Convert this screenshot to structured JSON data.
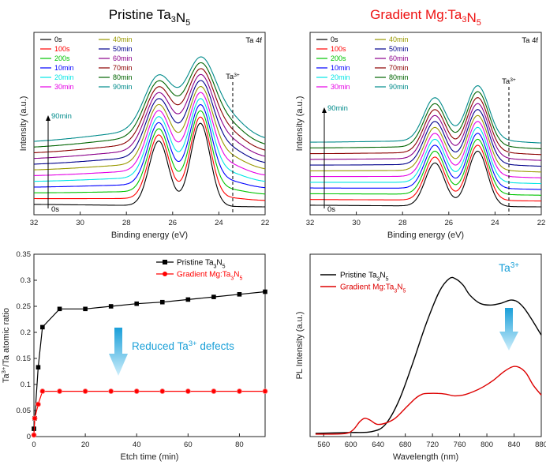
{
  "chart_data": [
    {
      "type": "line",
      "title": "Pristine Ta₃N₅",
      "title_color": "#000000",
      "xlabel": "Binding energy (eV)",
      "ylabel": "Intensity (a.u.)",
      "x_reversed": true,
      "xlim": [
        32,
        22
      ],
      "xticks": [
        "32",
        "30",
        "28",
        "26",
        "24",
        "22"
      ],
      "annotations": [
        "Ta 4f",
        "Ta³⁺",
        "90min",
        "0s"
      ],
      "peaks": {
        "ta4f_72": 24.8,
        "ta4f_52": 26.6,
        "ta3plus_line": 23.4
      },
      "series": [
        {
          "name": "0s",
          "color": "#000000"
        },
        {
          "name": "100s",
          "color": "#ff0000"
        },
        {
          "name": "200s",
          "color": "#00c400"
        },
        {
          "name": "10min",
          "color": "#0000ff"
        },
        {
          "name": "20min",
          "color": "#00e5e5"
        },
        {
          "name": "30min",
          "color": "#e500e5"
        },
        {
          "name": "40min",
          "color": "#999900"
        },
        {
          "name": "50min",
          "color": "#00008b"
        },
        {
          "name": "60min",
          "color": "#8b008b"
        },
        {
          "name": "70min",
          "color": "#8b0000"
        },
        {
          "name": "80min",
          "color": "#006400"
        },
        {
          "name": "90min",
          "color": "#008b8b"
        }
      ]
    },
    {
      "type": "line",
      "title": "Gradient Mg:Ta₃N₅",
      "title_color": "#ee1111",
      "xlabel": "Binding energy (eV)",
      "ylabel": "Intensity (a.u.)",
      "x_reversed": true,
      "xlim": [
        32,
        22
      ],
      "xticks": [
        "32",
        "30",
        "28",
        "26",
        "24",
        "22"
      ],
      "annotations": [
        "Ta 4f",
        "Ta³⁺",
        "90min",
        "0s"
      ],
      "peaks": {
        "ta4f_72": 24.75,
        "ta4f_52": 26.6,
        "ta3plus_line": 23.4
      },
      "series": [
        {
          "name": "0s",
          "color": "#000000"
        },
        {
          "name": "100s",
          "color": "#ff0000"
        },
        {
          "name": "200s",
          "color": "#00c400"
        },
        {
          "name": "10min",
          "color": "#0000ff"
        },
        {
          "name": "20min",
          "color": "#00e5e5"
        },
        {
          "name": "30min",
          "color": "#e500e5"
        },
        {
          "name": "40min",
          "color": "#999900"
        },
        {
          "name": "50min",
          "color": "#00008b"
        },
        {
          "name": "60min",
          "color": "#8b008b"
        },
        {
          "name": "70min",
          "color": "#8b0000"
        },
        {
          "name": "80min",
          "color": "#006400"
        },
        {
          "name": "90min",
          "color": "#008b8b"
        }
      ]
    },
    {
      "type": "line",
      "xlabel": "Etch time (min)",
      "ylabel": "Ta³⁺/Ta atomic ratio",
      "xlim": [
        0,
        90
      ],
      "ylim": [
        0,
        0.35
      ],
      "xticks": [
        "0",
        "20",
        "40",
        "60",
        "80"
      ],
      "yticks": [
        "0",
        "0.05",
        "0.1",
        "0.15",
        "0.2",
        "0.25",
        "0.3",
        "0.35"
      ],
      "annotation": "Reduced Ta³⁺ defects",
      "annotation_color": "#1aa0d8",
      "series": [
        {
          "name": "Pristine Ta₃N₅",
          "color": "#000000",
          "marker": "square",
          "x": [
            0,
            0.33,
            1.67,
            3.33,
            10,
            20,
            30,
            40,
            50,
            60,
            70,
            80,
            90
          ],
          "y": [
            0.015,
            0.035,
            0.133,
            0.21,
            0.245,
            0.245,
            0.25,
            0.255,
            0.258,
            0.263,
            0.268,
            0.273,
            0.278
          ]
        },
        {
          "name": "Gradient Mg:Ta₃N₅",
          "color": "#ff0000",
          "marker": "circle",
          "x": [
            0,
            0.33,
            1.67,
            3.33,
            10,
            20,
            30,
            40,
            50,
            60,
            70,
            80,
            90
          ],
          "y": [
            0.003,
            0.035,
            0.062,
            0.087,
            0.087,
            0.087,
            0.087,
            0.087,
            0.087,
            0.087,
            0.087,
            0.087,
            0.087
          ]
        }
      ]
    },
    {
      "type": "line",
      "xlabel": "Wavelength (nm)",
      "ylabel": "PL Intensity (a.u.)",
      "xlim": [
        540,
        880
      ],
      "xticks": [
        "560",
        "600",
        "640",
        "680",
        "720",
        "760",
        "800",
        "840",
        "880"
      ],
      "annotation": "Ta³⁺",
      "annotation_color": "#1aa0d8",
      "series": [
        {
          "name": "Pristine Ta₃N₅",
          "color": "#000000",
          "x": [
            548,
            600,
            630,
            650,
            670,
            690,
            710,
            730,
            745,
            755,
            765,
            775,
            790,
            805,
            820,
            835,
            845,
            855,
            865,
            880
          ],
          "y": [
            0.01,
            0.015,
            0.02,
            0.06,
            0.2,
            0.42,
            0.66,
            0.86,
            0.94,
            0.935,
            0.9,
            0.84,
            0.79,
            0.78,
            0.79,
            0.81,
            0.8,
            0.76,
            0.7,
            0.6
          ]
        },
        {
          "name": "Gradient Mg:Ta₃N₅",
          "color": "#dd0000",
          "x": [
            548,
            590,
            603,
            613,
            620,
            628,
            638,
            650,
            665,
            680,
            695,
            705,
            715,
            728,
            740,
            752,
            765,
            780,
            795,
            810,
            825,
            838,
            848,
            858,
            868,
            880
          ],
          "y": [
            0.005,
            0.008,
            0.03,
            0.08,
            0.1,
            0.09,
            0.065,
            0.07,
            0.1,
            0.16,
            0.22,
            0.245,
            0.25,
            0.25,
            0.245,
            0.235,
            0.24,
            0.26,
            0.29,
            0.33,
            0.38,
            0.41,
            0.405,
            0.37,
            0.3,
            0.24
          ]
        }
      ]
    }
  ]
}
